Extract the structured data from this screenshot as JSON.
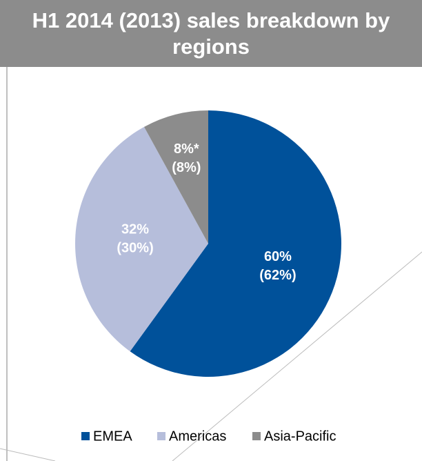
{
  "chart_data": {
    "type": "pie",
    "title": "H1 2014 (2013) sales breakdown by regions",
    "categories": [
      "EMEA",
      "Americas",
      "Asia-Pacific"
    ],
    "values": [
      60,
      32,
      8
    ],
    "value_labels": [
      "60%",
      "32%",
      "8%*"
    ],
    "prior_values": [
      62,
      30,
      8
    ],
    "prior_value_labels": [
      "(62%)",
      "(30%)",
      "(8%)"
    ],
    "colors": [
      "#00519a",
      "#b6bedb",
      "#8c8c8c"
    ],
    "legend": "bottom"
  }
}
